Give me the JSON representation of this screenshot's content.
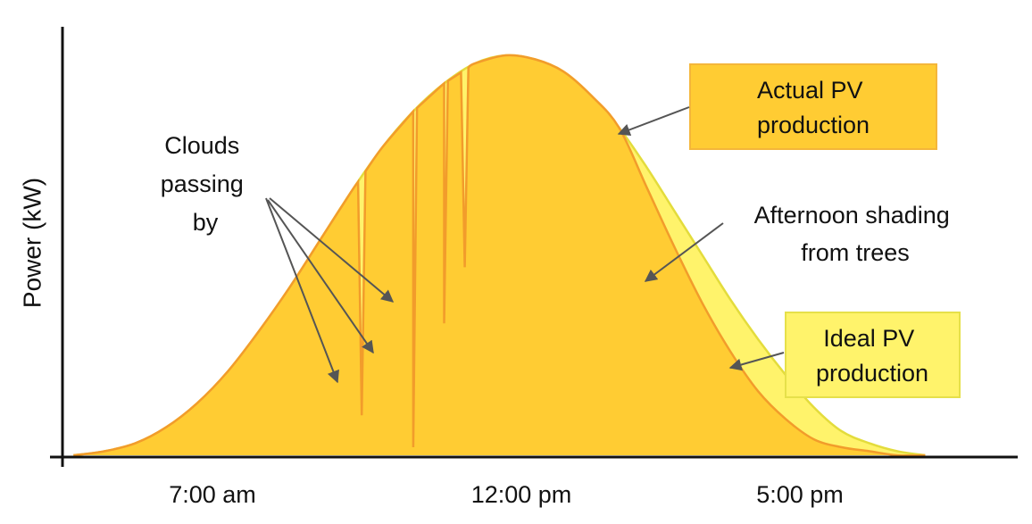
{
  "chart_data": {
    "type": "area",
    "title": "",
    "xlabel": "",
    "ylabel": "Power (kW)",
    "x_ticks": [
      "7:00 am",
      "12:00 pm",
      "5:00 pm"
    ],
    "grid": false,
    "legend": "none",
    "series": [
      {
        "label": "Ideal PV production",
        "color": "#FFF36B",
        "edge_color": "#E3DC3C",
        "x": [
          "4:45 am",
          "5:15 am",
          "5:45 am",
          "6:15 am",
          "6:45 am",
          "7:15 am",
          "7:45 am",
          "8:15 am",
          "8:45 am",
          "9:15 am",
          "9:45 am",
          "10:15 am",
          "10:45 am",
          "11:15 am",
          "11:45 am",
          "12:15 pm",
          "12:45 pm",
          "1:15 pm",
          "1:45 pm",
          "2:15 pm",
          "2:45 pm",
          "3:15 pm",
          "3:45 pm",
          "4:15 pm",
          "4:45 pm",
          "5:15 pm",
          "5:45 pm",
          "6:15 pm",
          "6:45 pm",
          "7:15 pm"
        ],
        "values": [
          0.0,
          0.01,
          0.03,
          0.07,
          0.13,
          0.21,
          0.31,
          0.42,
          0.54,
          0.66,
          0.77,
          0.86,
          0.93,
          0.98,
          1.0,
          0.99,
          0.96,
          0.9,
          0.82,
          0.72,
          0.61,
          0.5,
          0.39,
          0.29,
          0.2,
          0.12,
          0.06,
          0.03,
          0.01,
          0.0
        ]
      },
      {
        "label": "Actual PV production",
        "color": "#FFCC33",
        "edge_color": "#F29C2B",
        "x": [
          "4:45 am",
          "5:15 am",
          "5:45 am",
          "6:15 am",
          "6:45 am",
          "7:15 am",
          "7:45 am",
          "8:15 am",
          "8:45 am",
          "9:15 am",
          "9:45 am",
          "10:15 am",
          "10:45 am",
          "11:15 am",
          "11:45 am",
          "12:15 pm",
          "12:45 pm",
          "1:15 pm",
          "1:45 pm",
          "2:15 pm",
          "2:45 pm",
          "3:15 pm",
          "3:45 pm",
          "4:15 pm",
          "4:45 pm",
          "5:15 pm",
          "5:45 pm",
          "6:15 pm",
          "6:45 pm",
          "7:15 pm"
        ],
        "values": [
          0.0,
          0.01,
          0.03,
          0.07,
          0.13,
          0.21,
          0.31,
          0.42,
          0.54,
          0.66,
          0.77,
          0.86,
          0.93,
          0.98,
          1.0,
          0.99,
          0.96,
          0.9,
          0.82,
          0.67,
          0.52,
          0.38,
          0.26,
          0.16,
          0.09,
          0.04,
          0.02,
          0.01,
          0.0,
          0.0
        ],
        "dips": [
          {
            "x": "9:25 am",
            "value": 0.1
          },
          {
            "x": "10:15 am",
            "value": 0.02
          },
          {
            "x": "10:45 am",
            "value": 0.33
          },
          {
            "x": "11:05 am",
            "value": 0.47
          }
        ]
      }
    ],
    "annotations": [
      {
        "text_lines": [
          "Clouds",
          "passing",
          "by"
        ],
        "style": "plain"
      },
      {
        "text_lines": [
          "Actual PV",
          "production"
        ],
        "style": "box",
        "fill": "#FFCC33",
        "border": "#F4B63A"
      },
      {
        "text_lines": [
          "Afternoon shading",
          "from trees"
        ],
        "style": "plain"
      },
      {
        "text_lines": [
          "Ideal PV",
          "production"
        ],
        "style": "box",
        "fill": "#FFF36B",
        "border": "#E6E04A"
      }
    ]
  }
}
